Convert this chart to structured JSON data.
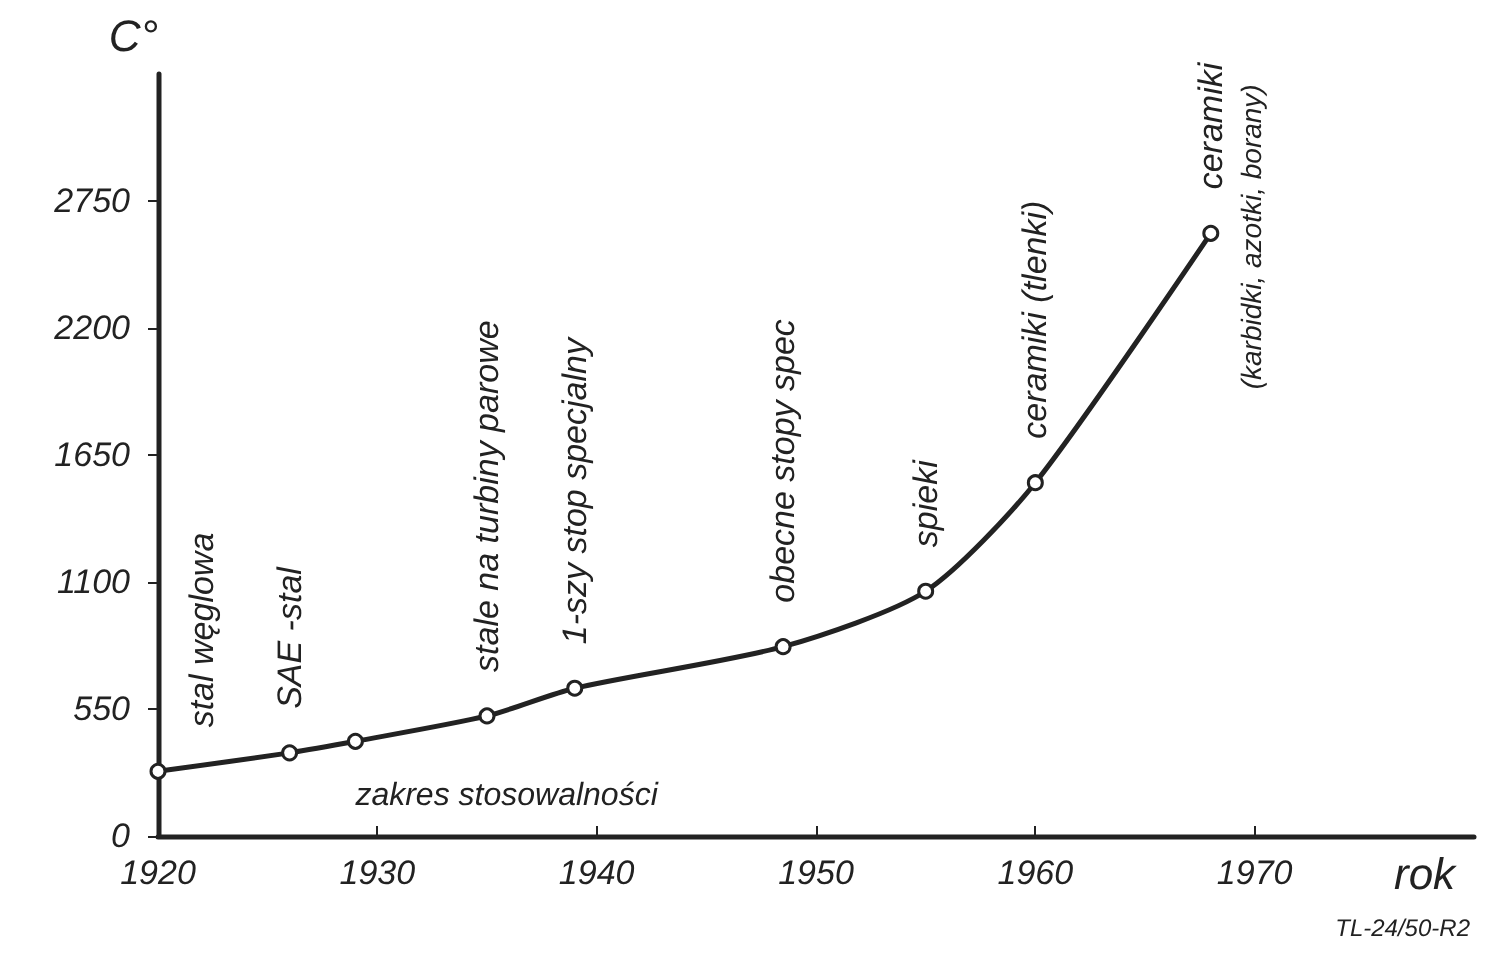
{
  "chart_data": {
    "type": "line",
    "xlabel": "rok",
    "ylabel": "C°",
    "x": [
      1920,
      1926,
      1929,
      1935,
      1939,
      1948.5,
      1955,
      1960,
      1968
    ],
    "series": [
      {
        "color": "#222222",
        "values": [
          280,
          360,
          410,
          520,
          640,
          820,
          1060,
          1530,
          2610
        ]
      }
    ],
    "xlim": [
      1920,
      1980
    ],
    "xticks": [
      1920,
      1930,
      1940,
      1950,
      1960,
      1970
    ],
    "ylim": [
      0,
      3300
    ],
    "yticks": [
      0,
      550,
      1100,
      1650,
      2200,
      2750
    ],
    "grid": false,
    "marker": "circle",
    "line_style": "solid",
    "annotations": [
      {
        "text": "stal węglowa",
        "x": 1920,
        "y": 280
      },
      {
        "text": "SAE -stal",
        "x": 1926,
        "y": 360
      },
      {
        "text": "stale na turbiny parowe",
        "x": 1935,
        "y": 520
      },
      {
        "text": "1-szy stop specjalny",
        "x": 1939,
        "y": 640
      },
      {
        "text": "obecne stopy spec",
        "x": 1948.5,
        "y": 820
      },
      {
        "text": "spieki",
        "x": 1955,
        "y": 1060
      },
      {
        "text": "ceramiki (tlenki)",
        "x": 1960,
        "y": 1530
      },
      {
        "text": "ceramiki",
        "x": 1968,
        "y": 2610
      },
      {
        "text": "(karbidki, azotki, borany)",
        "x": 1968,
        "y": 2610
      },
      "zakres stosowalności",
      "TL-24/50-R2"
    ]
  }
}
